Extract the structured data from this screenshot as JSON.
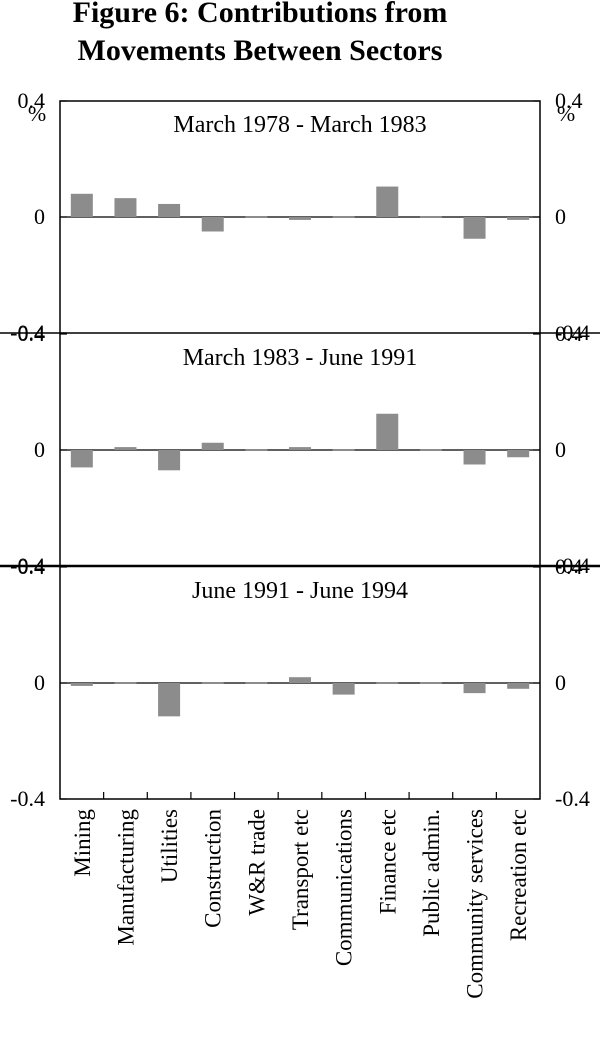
{
  "figure": {
    "title_line1": "Figure 6: Contributions from",
    "title_line2": "Movements Between Sectors"
  },
  "chart_data": [
    {
      "type": "bar",
      "title": "March 1978 - March 1983",
      "unit_left": "%",
      "unit_right": "%",
      "categories": [
        "Mining",
        "Manufacturing",
        "Utilities",
        "Construction",
        "W&R trade",
        "Transport etc",
        "Communications",
        "Finance etc",
        "Public admin.",
        "Community services",
        "Recreation etc"
      ],
      "values": [
        0.08,
        0.065,
        0.045,
        -0.05,
        0.0,
        -0.01,
        -0.005,
        0.105,
        0.0,
        -0.075,
        -0.01
      ],
      "ylim": [
        -0.4,
        0.4
      ],
      "yticks": [
        "0.4",
        "0",
        "-0.4"
      ],
      "bar_color": "#8c8c8c",
      "grid": false
    },
    {
      "type": "bar",
      "title": "March 1983 - June 1991",
      "categories": [
        "Mining",
        "Manufacturing",
        "Utilities",
        "Construction",
        "W&R trade",
        "Transport etc",
        "Communications",
        "Finance etc",
        "Public admin.",
        "Community services",
        "Recreation etc"
      ],
      "values": [
        -0.06,
        0.01,
        -0.07,
        0.025,
        0.005,
        0.01,
        0.0,
        0.125,
        0.0,
        -0.05,
        -0.025
      ],
      "ylim": [
        -0.4,
        0.4
      ],
      "yticks": [
        "0.4",
        "0",
        "-0.4"
      ],
      "bar_color": "#8c8c8c",
      "grid": false
    },
    {
      "type": "bar",
      "title": "June 1991 - June 1994",
      "categories": [
        "Mining",
        "Manufacturing",
        "Utilities",
        "Construction",
        "W&R trade",
        "Transport etc",
        "Communications",
        "Finance etc",
        "Public admin.",
        "Community services",
        "Recreation etc"
      ],
      "values": [
        -0.01,
        0.005,
        -0.115,
        0.005,
        0.0,
        0.02,
        -0.04,
        -0.005,
        0.005,
        -0.035,
        -0.02
      ],
      "ylim": [
        -0.4,
        0.4
      ],
      "yticks": [
        "0.4",
        "0",
        "-0.4"
      ],
      "bar_color": "#8c8c8c",
      "grid": false
    }
  ]
}
